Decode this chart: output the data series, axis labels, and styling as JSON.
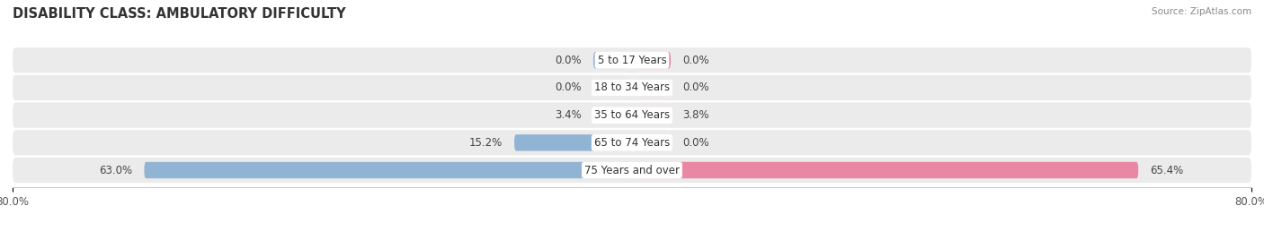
{
  "title": "DISABILITY CLASS: AMBULATORY DIFFICULTY",
  "source": "Source: ZipAtlas.com",
  "categories": [
    "5 to 17 Years",
    "18 to 34 Years",
    "35 to 64 Years",
    "65 to 74 Years",
    "75 Years and over"
  ],
  "male_values": [
    0.0,
    0.0,
    3.4,
    15.2,
    63.0
  ],
  "female_values": [
    0.0,
    0.0,
    3.8,
    0.0,
    65.4
  ],
  "male_color": "#92b4d4",
  "female_color": "#e888a4",
  "bar_bg_color": "#e8e8e8",
  "row_bg_color": "#ebebeb",
  "axis_min": -80.0,
  "axis_max": 80.0,
  "min_bar_width": 5.0,
  "bar_height": 0.6,
  "title_fontsize": 10.5,
  "label_fontsize": 8.5,
  "tick_fontsize": 8.5,
  "category_fontsize": 8.5,
  "background_color": "#ffffff"
}
